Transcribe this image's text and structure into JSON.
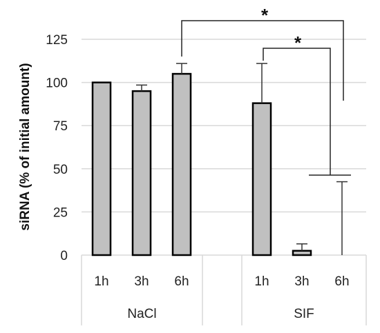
{
  "chart_data": {
    "type": "bar",
    "title": "",
    "xlabel": "",
    "ylabel": "siRNA (% of initial amount)",
    "ylim": [
      0,
      125
    ],
    "yticks": [
      0,
      25,
      50,
      75,
      100,
      125
    ],
    "grid": true,
    "legend": "none",
    "groups": [
      {
        "name": "NaCl",
        "categories": [
          "1h",
          "3h",
          "6h"
        ],
        "values": [
          100,
          95,
          105
        ],
        "errors": [
          0,
          3.5,
          6
        ]
      },
      {
        "name": "SIF",
        "categories": [
          "1h",
          "3h",
          "6h"
        ],
        "values": [
          88,
          2.5,
          0
        ],
        "errors": [
          23,
          4,
          42.5
        ]
      }
    ],
    "annotations": [
      {
        "text": "*",
        "from": "NaCl 6h",
        "to": "SIF 6h"
      },
      {
        "text": "*",
        "from": "SIF 1h",
        "to": "SIF 6h"
      }
    ],
    "colors": {
      "bar_fill": "#c0c0c0",
      "bar_edge": "#000000",
      "grid": "#d9d9d9",
      "axis_table": "#d9d9d9"
    }
  }
}
